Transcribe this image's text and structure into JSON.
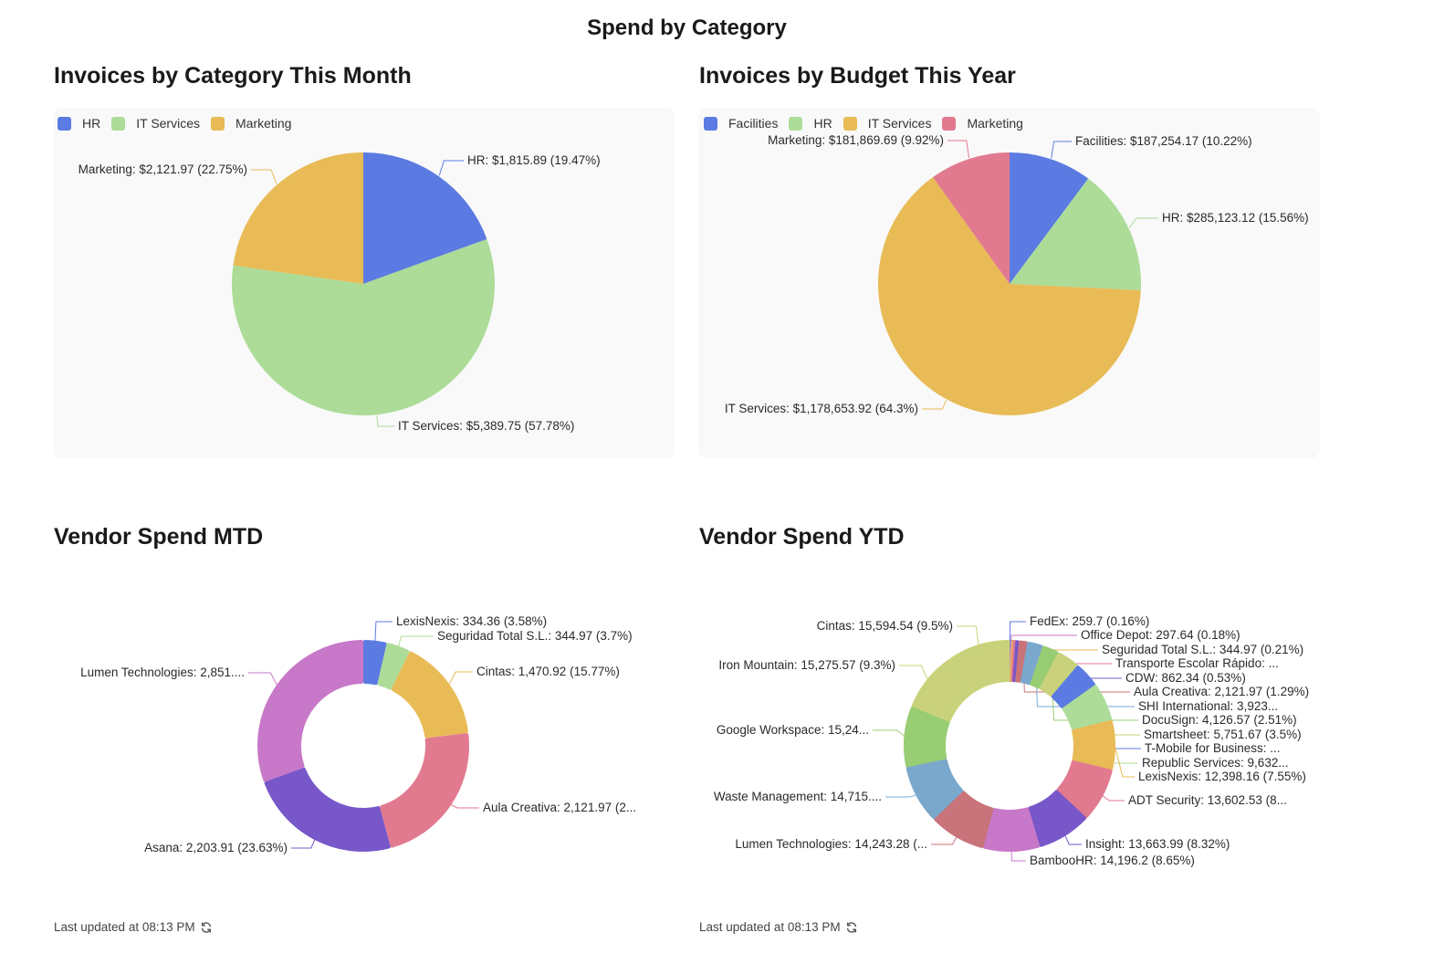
{
  "page": {
    "title": "Spend by Category"
  },
  "palette": {
    "blue": "#5b7be2",
    "green": "#acdc98",
    "yellow": "#e8bb56",
    "pink": "#e27a8f",
    "purple": "#7857c9",
    "magenta": "#c878c8",
    "red": "#c9737a",
    "steel": "#7aa8cd",
    "green2": "#98cd74",
    "olive": "#c9d27a"
  },
  "chart_data": [
    {
      "id": "invoices-by-category-month",
      "type": "pie",
      "title": "Invoices by Category This Month",
      "legend": [
        "HR",
        "IT Services",
        "Marketing"
      ],
      "legend_position": "top-left",
      "slices": [
        {
          "name": "HR",
          "value": 1815.89,
          "percent": 19.47,
          "label": "HR: $1,815.89 (19.47%)",
          "color": "#5b7be2"
        },
        {
          "name": "IT Services",
          "value": 5389.75,
          "percent": 57.78,
          "label": "IT Services: $5,389.75 (57.78%)",
          "color": "#acdc98"
        },
        {
          "name": "Marketing",
          "value": 2121.97,
          "percent": 22.75,
          "label": "Marketing: $2,121.97 (22.75%)",
          "color": "#e8bb56"
        }
      ]
    },
    {
      "id": "invoices-by-budget-year",
      "type": "pie",
      "title": "Invoices by Budget This Year",
      "legend": [
        "Facilities",
        "HR",
        "IT Services",
        "Marketing"
      ],
      "legend_position": "top-left",
      "slices": [
        {
          "name": "Facilities",
          "value": 187254.17,
          "percent": 10.22,
          "label": "Facilities: $187,254.17 (10.22%)",
          "color": "#5b7be2"
        },
        {
          "name": "HR",
          "value": 285123.12,
          "percent": 15.56,
          "label": "HR: $285,123.12 (15.56%)",
          "color": "#acdc98"
        },
        {
          "name": "IT Services",
          "value": 1178653.92,
          "percent": 64.3,
          "label": "IT Services: $1,178,653.92 (64.3%)",
          "color": "#e8bb56"
        },
        {
          "name": "Marketing",
          "value": 181869.69,
          "percent": 9.92,
          "label": "Marketing: $181,869.69 (9.92%)",
          "color": "#e27a8f"
        }
      ]
    },
    {
      "id": "vendor-spend-mtd",
      "type": "pie",
      "variant": "donut",
      "title": "Vendor Spend MTD",
      "slices": [
        {
          "name": "LexisNexis",
          "value": 334.36,
          "percent": 3.58,
          "label": "LexisNexis: 334.36 (3.58%)",
          "color": "#5b7be2"
        },
        {
          "name": "Seguridad Total S.L.",
          "value": 344.97,
          "percent": 3.7,
          "label": "Seguridad Total S.L.: 344.97 (3.7%)",
          "color": "#acdc98"
        },
        {
          "name": "Cintas",
          "value": 1470.92,
          "percent": 15.77,
          "label": "Cintas: 1,470.92 (15.77%)",
          "color": "#e8bb56"
        },
        {
          "name": "Aula Creativa",
          "value": 2121.97,
          "percent": 22.75,
          "label": "Aula Creativa: 2,121.97 (2...",
          "color": "#e27a8f"
        },
        {
          "name": "Asana",
          "value": 2203.91,
          "percent": 23.63,
          "label": "Asana: 2,203.91 (23.63%)",
          "color": "#7857c9"
        },
        {
          "name": "Lumen Technologies",
          "value": 2851,
          "percent": 30.57,
          "label": "Lumen Technologies: 2,851....",
          "color": "#c878c8"
        }
      ],
      "footer": "Last updated at 08:13 PM"
    },
    {
      "id": "vendor-spend-ytd",
      "type": "pie",
      "variant": "donut",
      "title": "Vendor Spend YTD",
      "slices": [
        {
          "name": "FedEx",
          "value": 259.7,
          "percent": 0.16,
          "label": "FedEx: 259.7 (0.16%)",
          "color": "#5b7be2"
        },
        {
          "name": "Office Depot",
          "value": 297.64,
          "percent": 0.18,
          "label": "Office Depot: 297.64 (0.18%)",
          "color": "#c878c8"
        },
        {
          "name": "Seguridad Total S.L.",
          "value": 344.97,
          "percent": 0.21,
          "label": "Seguridad Total S.L.: 344.97 (0.21%)",
          "color": "#e8bb56"
        },
        {
          "name": "Transporte Escolar Rápido",
          "value": 600,
          "percent": 0.37,
          "label": "Transporte Escolar Rápido: ...",
          "color": "#e27a8f"
        },
        {
          "name": "CDW",
          "value": 862.34,
          "percent": 0.53,
          "label": "CDW: 862.34 (0.53%)",
          "color": "#7857c9"
        },
        {
          "name": "Aula Creativa",
          "value": 2121.97,
          "percent": 1.29,
          "label": "Aula Creativa: 2,121.97 (1.29%)",
          "color": "#c9737a"
        },
        {
          "name": "SHI International",
          "value": 3923,
          "percent": 2.39,
          "label": "SHI International: 3,923...",
          "color": "#7aa8cd"
        },
        {
          "name": "DocuSign",
          "value": 4126.57,
          "percent": 2.51,
          "label": "DocuSign: 4,126.57 (2.51%)",
          "color": "#98cd74"
        },
        {
          "name": "Smartsheet",
          "value": 5751.67,
          "percent": 3.5,
          "label": "Smartsheet: 5,751.67 (3.5%)",
          "color": "#c9d27a"
        },
        {
          "name": "T-Mobile for Business",
          "value": 6500,
          "percent": 3.96,
          "label": "T-Mobile for Business: ...",
          "color": "#5b7be2"
        },
        {
          "name": "Republic Services",
          "value": 9632,
          "percent": 5.87,
          "label": "Republic Services: 9,632...",
          "color": "#acdc98"
        },
        {
          "name": "LexisNexis",
          "value": 12398.16,
          "percent": 7.55,
          "label": "LexisNexis: 12,398.16 (7.55%)",
          "color": "#e8bb56"
        },
        {
          "name": "ADT Security",
          "value": 13602.53,
          "percent": 8.28,
          "label": "ADT Security: 13,602.53 (8...",
          "color": "#e27a8f"
        },
        {
          "name": "Insight",
          "value": 13663.99,
          "percent": 8.32,
          "label": "Insight: 13,663.99 (8.32%)",
          "color": "#7857c9"
        },
        {
          "name": "BambooHR",
          "value": 14196.2,
          "percent": 8.65,
          "label": "BambooHR: 14,196.2 (8.65%)",
          "color": "#c878c8"
        },
        {
          "name": "Lumen Technologies",
          "value": 14243.28,
          "percent": 8.67,
          "label": "Lumen Technologies: 14,243.28 (...",
          "color": "#c9737a"
        },
        {
          "name": "Waste Management",
          "value": 14715,
          "percent": 8.96,
          "label": "Waste Management: 14,715....",
          "color": "#7aa8cd"
        },
        {
          "name": "Google Workspace",
          "value": 15240,
          "percent": 9.28,
          "label": "Google Workspace: 15,24...",
          "color": "#98cd74"
        },
        {
          "name": "Iron Mountain",
          "value": 15275.57,
          "percent": 9.3,
          "label": "Iron Mountain: 15,275.57 (9.3%)",
          "color": "#c9d27a"
        },
        {
          "name": "Cintas",
          "value": 15594.54,
          "percent": 9.5,
          "label": "Cintas: 15,594.54 (9.5%)",
          "color": "#c9d27a"
        }
      ],
      "footer": "Last updated at 08:13 PM"
    }
  ]
}
